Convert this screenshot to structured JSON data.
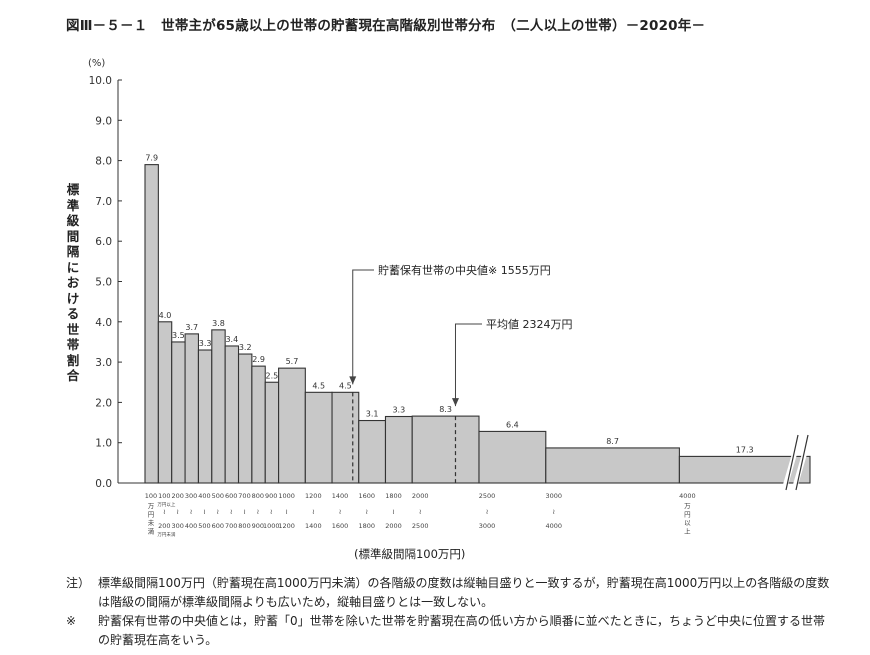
{
  "title": "図Ⅲ－５－１　世帯主が65歳以上の世帯の貯蓄現在高階級別世帯分布　（二人以上の世帯）－2020年－",
  "chart_data": {
    "type": "bar",
    "title": "世帯主が65歳以上の世帯の貯蓄現在高階級別世帯分布（二人以上の世帯）－2020年－",
    "ylabel": "標準級間隔における世帯割合",
    "yunit": "(%)",
    "xlabel": "(標準級間隔100万円)",
    "ylim": [
      0,
      10
    ],
    "yticks": [
      "0.0",
      "1.0",
      "2.0",
      "3.0",
      "4.0",
      "5.0",
      "6.0",
      "7.0",
      "8.0",
      "9.0",
      "10.0"
    ],
    "grid": false,
    "bar_color": "#c8c8c8",
    "bins": [
      {
        "from": 0,
        "to": 100,
        "value": "7.9",
        "height": 7.9,
        "tick_top": "100",
        "tick_bottom": "万円未満"
      },
      {
        "from": 100,
        "to": 200,
        "value": "4.0",
        "height": 4.0,
        "tick_top": "100 万円以上",
        "tick_bottom": "200 万円未満"
      },
      {
        "from": 200,
        "to": 300,
        "value": "3.5",
        "height": 3.5,
        "tick_top": "200",
        "tick_bottom": "300"
      },
      {
        "from": 300,
        "to": 400,
        "value": "3.7",
        "height": 3.7,
        "tick_top": "300",
        "tick_bottom": "400"
      },
      {
        "from": 400,
        "to": 500,
        "value": "3.3",
        "height": 3.3,
        "tick_top": "400",
        "tick_bottom": "500"
      },
      {
        "from": 500,
        "to": 600,
        "value": "3.8",
        "height": 3.8,
        "tick_top": "500",
        "tick_bottom": "600"
      },
      {
        "from": 600,
        "to": 700,
        "value": "3.4",
        "height": 3.4,
        "tick_top": "600",
        "tick_bottom": "700"
      },
      {
        "from": 700,
        "to": 800,
        "value": "3.2",
        "height": 3.2,
        "tick_top": "700",
        "tick_bottom": "800"
      },
      {
        "from": 800,
        "to": 900,
        "value": "2.9",
        "height": 2.9,
        "tick_top": "800",
        "tick_bottom": "900"
      },
      {
        "from": 900,
        "to": 1000,
        "value": "2.5",
        "height": 2.5,
        "tick_top": "900",
        "tick_bottom": "1000"
      },
      {
        "from": 1000,
        "to": 1200,
        "value": "5.7",
        "height": 2.85,
        "tick_top": "1000",
        "tick_bottom": "1200"
      },
      {
        "from": 1200,
        "to": 1400,
        "value": "4.5",
        "height": 2.25,
        "tick_top": "1200",
        "tick_bottom": "1400"
      },
      {
        "from": 1400,
        "to": 1600,
        "value": "4.5",
        "height": 2.25,
        "tick_top": "1400",
        "tick_bottom": "1600"
      },
      {
        "from": 1600,
        "to": 1800,
        "value": "3.1",
        "height": 1.55,
        "tick_top": "1600",
        "tick_bottom": "1800"
      },
      {
        "from": 1800,
        "to": 2000,
        "value": "3.3",
        "height": 1.65,
        "tick_top": "1800",
        "tick_bottom": "2000"
      },
      {
        "from": 2000,
        "to": 2500,
        "value": "8.3",
        "height": 1.66,
        "tick_top": "2000",
        "tick_bottom": "2500"
      },
      {
        "from": 2500,
        "to": 3000,
        "value": "6.4",
        "height": 1.28,
        "tick_top": "2500",
        "tick_bottom": "3000"
      },
      {
        "from": 3000,
        "to": 4000,
        "value": "8.7",
        "height": 0.87,
        "tick_top": "3000",
        "tick_bottom": "4000"
      },
      {
        "from": 4000,
        "to": null,
        "value": "17.3",
        "height": 0.66,
        "tick_top": "4000",
        "tick_bottom": "万円以上"
      }
    ],
    "annotations": [
      {
        "label": "貯蓄保有世帯の中央値※ 1555万円",
        "x": 1555
      },
      {
        "label": "平均値 2324万円",
        "x": 2324
      }
    ]
  },
  "notes": [
    {
      "mark": "注）",
      "text": "標準級間隔100万円（貯蓄現在高1000万円未満）の各階級の度数は縦軸目盛りと一致するが，貯蓄現在高1000万円以上の各階級の度数は階級の間隔が標準級間隔よりも広いため，縦軸目盛りとは一致しない。"
    },
    {
      "mark": "※",
      "text": "貯蓄保有世帯の中央値とは，貯蓄「0」世帯を除いた世帯を貯蓄現在高の低い方から順番に並べたときに，ちょうど中央に位置する世帯の貯蓄現在高をいう。"
    }
  ]
}
